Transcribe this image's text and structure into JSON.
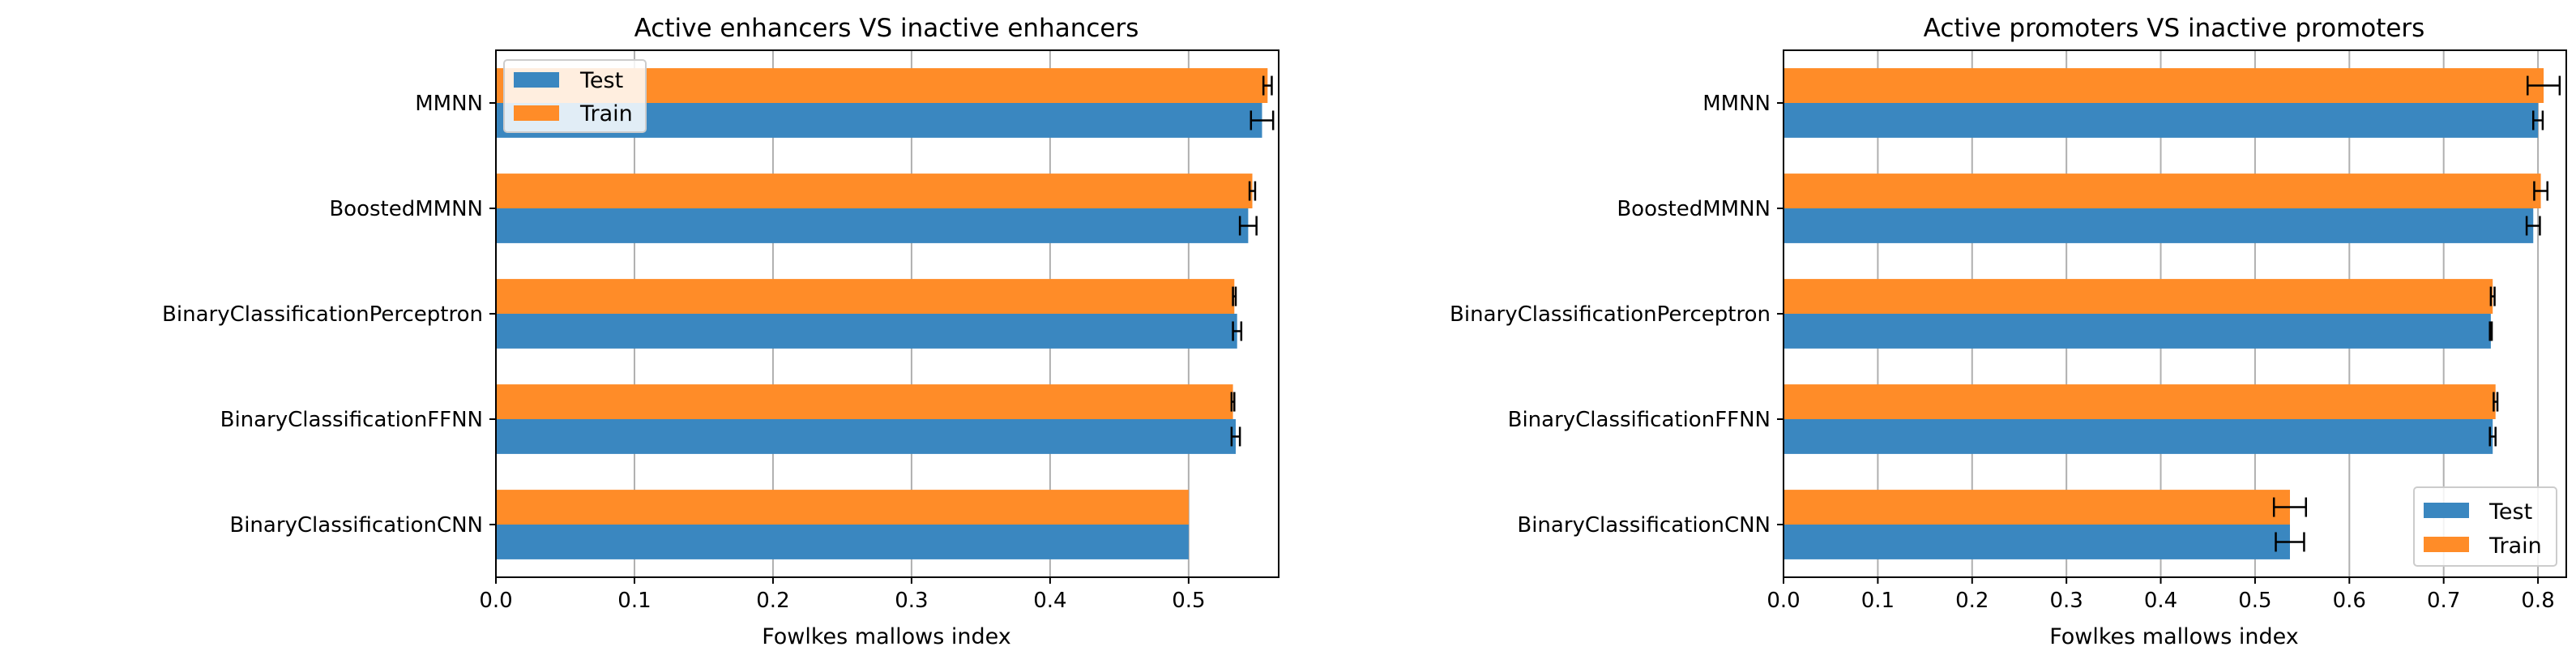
{
  "charts": [
    {
      "title": "Active enhancers VS inactive enhancers",
      "xlabel": "Fowlkes mallows index",
      "xticks": [
        "0.0",
        "0.1",
        "0.2",
        "0.3",
        "0.4",
        "0.5"
      ],
      "legend": {
        "position": "upper left",
        "test_label": "Test",
        "train_label": "Train"
      },
      "categories": [
        "MMNN",
        "BoostedMMNN",
        "BinaryClassificationPerceptron",
        "BinaryClassificationFFNN",
        "BinaryClassificationCNN"
      ]
    },
    {
      "title": "Active promoters VS inactive promoters",
      "xlabel": "Fowlkes mallows index",
      "xticks": [
        "0.0",
        "0.1",
        "0.2",
        "0.3",
        "0.4",
        "0.5",
        "0.6",
        "0.7",
        "0.8"
      ],
      "legend": {
        "position": "lower right",
        "test_label": "Test",
        "train_label": "Train"
      },
      "categories": [
        "MMNN",
        "BoostedMMNN",
        "BinaryClassificationPerceptron",
        "BinaryClassificationFFNN",
        "BinaryClassificationCNN"
      ]
    }
  ],
  "chart_data": [
    {
      "type": "bar",
      "orientation": "horizontal",
      "title": "Active enhancers VS inactive enhancers",
      "xlabel": "Fowlkes mallows index",
      "ylabel": "",
      "xlim": [
        0,
        0.565
      ],
      "grid": "vertical",
      "legend": "upper left",
      "categories": [
        "MMNN",
        "BoostedMMNN",
        "BinaryClassificationPerceptron",
        "BinaryClassificationFFNN",
        "BinaryClassificationCNN"
      ],
      "colors": {
        "Test": "#3a87c0",
        "Train": "#ff8c28"
      },
      "series": [
        {
          "name": "Test",
          "values": [
            0.553,
            0.543,
            0.535,
            0.534,
            0.5
          ],
          "errors": [
            0.008,
            0.006,
            0.003,
            0.003,
            0.0
          ]
        },
        {
          "name": "Train",
          "values": [
            0.557,
            0.546,
            0.533,
            0.532,
            0.5
          ],
          "errors": [
            0.003,
            0.002,
            0.001,
            0.001,
            0.0
          ]
        }
      ]
    },
    {
      "type": "bar",
      "orientation": "horizontal",
      "title": "Active promoters VS inactive promoters",
      "xlabel": "Fowlkes mallows index",
      "ylabel": "",
      "xlim": [
        0,
        0.83
      ],
      "grid": "vertical",
      "legend": "lower right",
      "categories": [
        "MMNN",
        "BoostedMMNN",
        "BinaryClassificationPerceptron",
        "BinaryClassificationFFNN",
        "BinaryClassificationCNN"
      ],
      "colors": {
        "Test": "#3a87c0",
        "Train": "#ff8c28"
      },
      "series": [
        {
          "name": "Test",
          "values": [
            0.8,
            0.795,
            0.75,
            0.752,
            0.537
          ],
          "errors": [
            0.005,
            0.007,
            0.001,
            0.003,
            0.015
          ]
        },
        {
          "name": "Train",
          "values": [
            0.806,
            0.803,
            0.752,
            0.755,
            0.537
          ],
          "errors": [
            0.017,
            0.007,
            0.002,
            0.002,
            0.017
          ]
        }
      ]
    }
  ]
}
